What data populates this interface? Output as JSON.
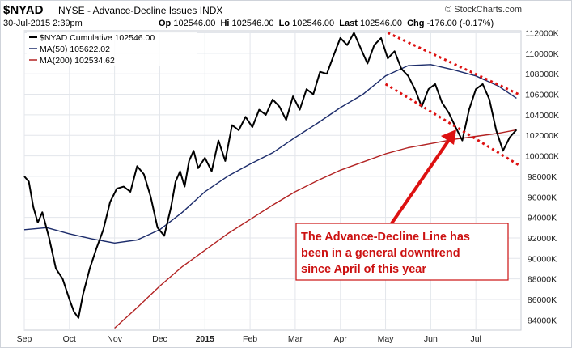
{
  "chart_data": {
    "type": "line",
    "symbol": "$NYAD",
    "title": "NYSE - Advance-Decline Issues  INDX",
    "credit": "StockCharts.com",
    "date": "30-Jul-2015 2:39pm",
    "quote": {
      "open_label": "Op",
      "open": "102546.00",
      "high_label": "Hi",
      "high": "102546.00",
      "low_label": "Lo",
      "low": "102546.00",
      "last_label": "Last",
      "last": "102546.00",
      "change_label": "Chg",
      "change": "-176.00 (-0.17%)"
    },
    "x_tick_labels": [
      "Sep",
      "Oct",
      "Nov",
      "Dec",
      "2015",
      "Feb",
      "Mar",
      "Apr",
      "May",
      "Jun",
      "Jul"
    ],
    "x_tick_month_index": [
      0,
      1,
      2,
      3,
      4,
      5,
      6,
      7,
      8,
      9,
      10
    ],
    "x_range_months": [
      0,
      11.0
    ],
    "y_tick_labels": [
      "84000",
      "86000",
      "88000",
      "90000",
      "92000",
      "94000",
      "96000",
      "98000",
      "100000",
      "102000",
      "104000",
      "106000",
      "108000",
      "110000",
      "112000"
    ],
    "y_tick_values": [
      84000,
      86000,
      88000,
      90000,
      92000,
      94000,
      96000,
      98000,
      100000,
      102000,
      104000,
      106000,
      108000,
      110000,
      112000
    ],
    "y_tick_suffix": "K",
    "ylim": [
      83000,
      112200
    ],
    "grid": true,
    "legend_position": "top-left",
    "colors": {
      "cumulative": "#000000",
      "ma50": "#1c2c6b",
      "ma200": "#b22222",
      "annotation": "#dd1111",
      "grid": "#e3e6eb"
    },
    "series": [
      {
        "name": "$NYAD Cumulative 102546.00",
        "x": [
          0,
          0.1,
          0.2,
          0.3,
          0.4,
          0.55,
          0.7,
          0.85,
          1.0,
          1.1,
          1.2,
          1.3,
          1.45,
          1.6,
          1.75,
          1.9,
          2.05,
          2.2,
          2.35,
          2.5,
          2.65,
          2.8,
          2.95,
          3.1,
          3.25,
          3.35,
          3.45,
          3.55,
          3.65,
          3.75,
          3.85,
          4.0,
          4.15,
          4.3,
          4.45,
          4.6,
          4.75,
          4.9,
          5.05,
          5.2,
          5.35,
          5.5,
          5.65,
          5.8,
          5.95,
          6.1,
          6.25,
          6.4,
          6.55,
          6.7,
          6.85,
          7.0,
          7.15,
          7.3,
          7.45,
          7.6,
          7.75,
          7.9,
          8.05,
          8.2,
          8.35,
          8.5,
          8.65,
          8.8,
          8.95,
          9.1,
          9.25,
          9.4,
          9.55,
          9.7,
          9.85,
          10.0,
          10.15,
          10.3,
          10.45,
          10.6,
          10.75,
          10.9
        ],
        "values": [
          98000,
          97500,
          95000,
          93500,
          94500,
          92000,
          89000,
          88000,
          86000,
          84800,
          84200,
          86500,
          89000,
          91000,
          92800,
          95500,
          96800,
          97000,
          96500,
          99000,
          98200,
          96000,
          93000,
          92200,
          95000,
          97500,
          98500,
          97000,
          99500,
          100500,
          98800,
          99800,
          98500,
          101500,
          99500,
          103000,
          102500,
          103800,
          102800,
          104500,
          104000,
          105500,
          104800,
          103500,
          105800,
          104500,
          106500,
          106000,
          108200,
          108000,
          109800,
          111500,
          110800,
          112000,
          110500,
          109000,
          110800,
          111500,
          109500,
          110200,
          108500,
          107800,
          106500,
          104800,
          106500,
          107000,
          105200,
          104200,
          102800,
          101500,
          104500,
          106500,
          107000,
          105500,
          102500,
          100500,
          101800,
          102546
        ]
      },
      {
        "name": "MA(50) 105622.02",
        "x": [
          0,
          0.5,
          1.0,
          1.5,
          2.0,
          2.5,
          3.0,
          3.5,
          4.0,
          4.5,
          5.0,
          5.5,
          6.0,
          6.5,
          7.0,
          7.5,
          8.0,
          8.5,
          9.0,
          9.5,
          10.0,
          10.5,
          10.9
        ],
        "values": [
          92800,
          93000,
          92400,
          91900,
          91500,
          91800,
          92800,
          94500,
          96500,
          98000,
          99200,
          100300,
          101800,
          103200,
          104700,
          106000,
          107800,
          108800,
          108900,
          108400,
          107800,
          106800,
          105622
        ]
      },
      {
        "name": "MA(200) 102534.62",
        "x": [
          2.0,
          2.5,
          3.0,
          3.5,
          4.0,
          4.5,
          5.0,
          5.5,
          6.0,
          6.5,
          7.0,
          7.5,
          8.0,
          8.5,
          9.0,
          9.5,
          10.0,
          10.5,
          10.9
        ],
        "values": [
          83200,
          85200,
          87300,
          89200,
          90800,
          92400,
          93800,
          95200,
          96500,
          97600,
          98600,
          99400,
          100200,
          100800,
          101200,
          101600,
          101900,
          102200,
          102535
        ]
      }
    ],
    "trend_channel": {
      "upper": [
        [
          8.05,
          112000
        ],
        [
          10.95,
          106000
        ]
      ],
      "lower": [
        [
          8.0,
          107000
        ],
        [
          10.95,
          99100
        ]
      ]
    },
    "annotation": {
      "lines": [
        "The Advance-Decline Line has",
        "been in a general downtrend",
        "since April of this year"
      ],
      "arrow_target": [
        9.7,
        103800
      ]
    }
  }
}
